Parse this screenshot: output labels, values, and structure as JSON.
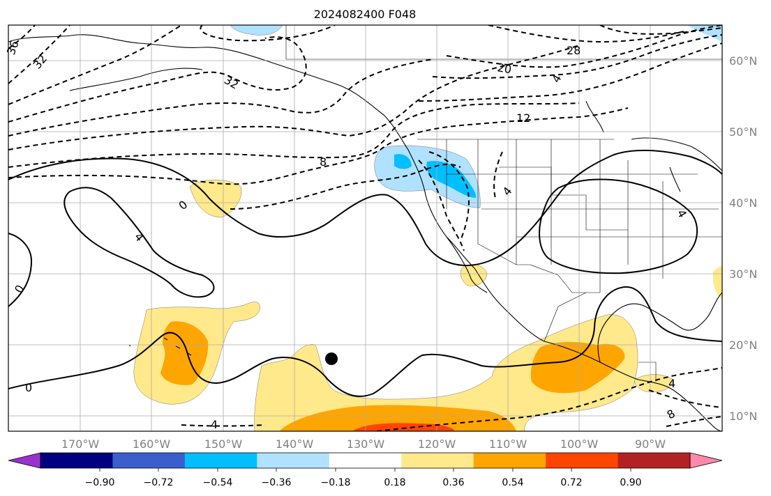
{
  "title": "2024082400 F048",
  "lon_labels": [
    "170°W",
    "160°W",
    "150°W",
    "140°W",
    "130°W",
    "120°W",
    "110°W",
    "100°W",
    "90°W"
  ],
  "lat_labels": [
    "60°N",
    "50°N",
    "40°N",
    "30°N",
    "20°N",
    "10°N"
  ],
  "colorbar": {
    "tick_labels": [
      "−0.90",
      "−0.72",
      "−0.54",
      "−0.36",
      "−0.18",
      "0.18",
      "0.36",
      "0.54",
      "0.72",
      "0.90"
    ],
    "colors": [
      "#9932cc",
      "#000080",
      "#3a5fcd",
      "#00bfff",
      "#b0e2ff",
      "#ffffff",
      "#ffe98a",
      "#ffa500",
      "#ff4500",
      "#b22222",
      "#ff88aa"
    ]
  },
  "contour_labels": [
    "36",
    "32",
    "32",
    "28",
    "20",
    "12",
    "8",
    "4",
    "0",
    "4",
    "0",
    "0",
    "4",
    "4",
    "8",
    "4",
    "4"
  ],
  "colors": {
    "axis_text": "#808080",
    "grid": "#aaaaaa",
    "contour": "#000000"
  }
}
